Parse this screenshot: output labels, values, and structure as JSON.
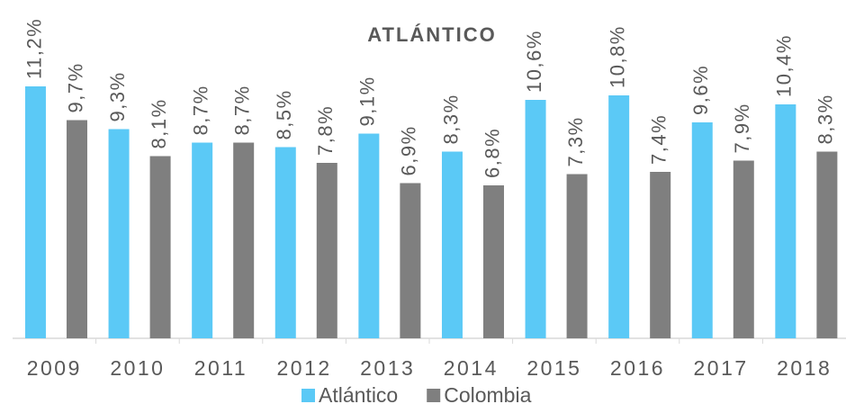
{
  "chart_data": {
    "type": "bar",
    "title": "ATLÁNTICO",
    "categories": [
      "2009",
      "2010",
      "2011",
      "2012",
      "2013",
      "2014",
      "2015",
      "2016",
      "2017",
      "2018"
    ],
    "series": [
      {
        "name": "Atlántico",
        "color": "#5bc9f6",
        "values": [
          11.2,
          9.3,
          8.7,
          8.5,
          9.1,
          8.3,
          10.6,
          10.8,
          9.6,
          10.4
        ],
        "value_labels": [
          "11,2%",
          "9,3%",
          "8,7%",
          "8,5%",
          "9,1%",
          "8,3%",
          "10,6%",
          "10,8%",
          "9,6%",
          "10,4%"
        ]
      },
      {
        "name": "Colombia",
        "color": "#7f7f7f",
        "values": [
          9.7,
          8.1,
          8.7,
          7.8,
          6.9,
          6.8,
          7.3,
          7.4,
          7.9,
          8.3
        ],
        "value_labels": [
          "9,7%",
          "8,1%",
          "8,7%",
          "7,8%",
          "6,9%",
          "6,8%",
          "7,3%",
          "7,4%",
          "7,9%",
          "8,3%"
        ]
      }
    ],
    "legend": "bottom"
  }
}
